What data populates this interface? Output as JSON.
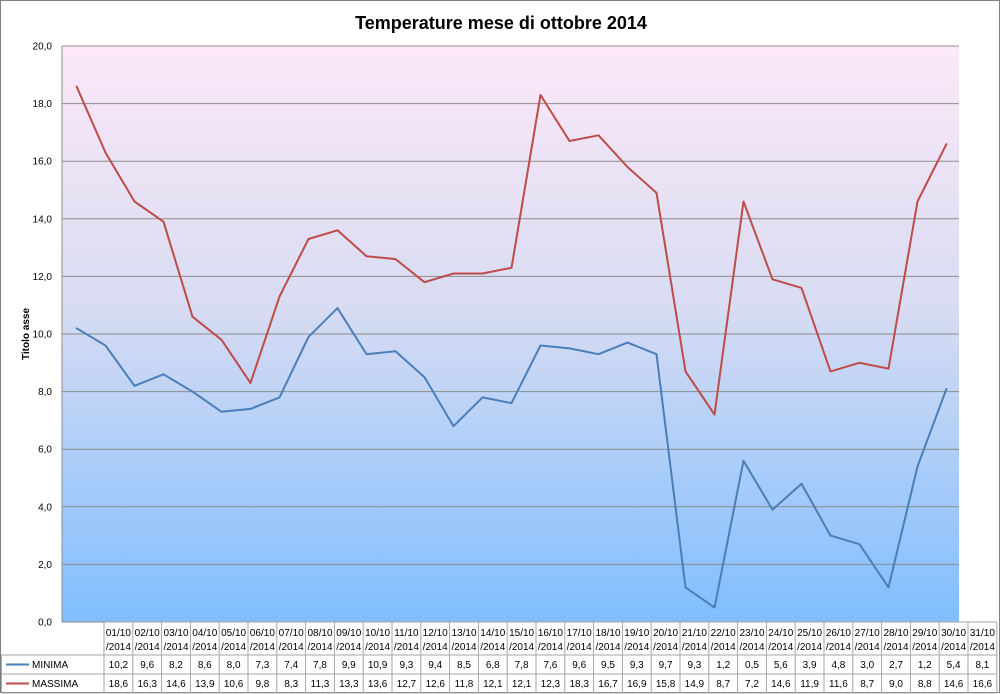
{
  "chart_data": {
    "type": "line",
    "title": "Temperature mese di ottobre 2014",
    "ylabel": "Titolo asse",
    "xlabel": "",
    "ylim": [
      0,
      20
    ],
    "yticks": [
      "0,0",
      "2,0",
      "4,0",
      "6,0",
      "8,0",
      "10,0",
      "12,0",
      "14,0",
      "16,0",
      "18,0",
      "20,0"
    ],
    "grid": true,
    "legend_placement": "data-table",
    "categories": [
      [
        "01/10",
        "/2014"
      ],
      [
        "02/10",
        "/2014"
      ],
      [
        "03/10",
        "/2014"
      ],
      [
        "04/10",
        "/2014"
      ],
      [
        "05/10",
        "/2014"
      ],
      [
        "06/10",
        "/2014"
      ],
      [
        "07/10",
        "/2014"
      ],
      [
        "08/10",
        "/2014"
      ],
      [
        "09/10",
        "/2014"
      ],
      [
        "10/10",
        "/2014"
      ],
      [
        "11/10",
        "/2014"
      ],
      [
        "12/10",
        "/2014"
      ],
      [
        "13/10",
        "/2014"
      ],
      [
        "14/10",
        "/2014"
      ],
      [
        "15/10",
        "/2014"
      ],
      [
        "16/10",
        "/2014"
      ],
      [
        "17/10",
        "/2014"
      ],
      [
        "18/10",
        "/2014"
      ],
      [
        "19/10",
        "/2014"
      ],
      [
        "20/10",
        "/2014"
      ],
      [
        "21/10",
        "/2014"
      ],
      [
        "22/10",
        "/2014"
      ],
      [
        "23/10",
        "/2014"
      ],
      [
        "24/10",
        "/2014"
      ],
      [
        "25/10",
        "/2014"
      ],
      [
        "26/10",
        "/2014"
      ],
      [
        "27/10",
        "/2014"
      ],
      [
        "28/10",
        "/2014"
      ],
      [
        "29/10",
        "/2014"
      ],
      [
        "30/10",
        "/2014"
      ],
      [
        "31/10",
        "/2014"
      ]
    ],
    "series": [
      {
        "name": "MINIMA",
        "color": "#4a7ebb",
        "values": [
          10.2,
          9.6,
          8.2,
          8.6,
          8.0,
          7.3,
          7.4,
          7.8,
          9.9,
          10.9,
          9.3,
          9.4,
          8.5,
          6.8,
          7.8,
          7.6,
          9.6,
          9.5,
          9.3,
          9.7,
          9.3,
          1.2,
          0.5,
          5.6,
          3.9,
          4.8,
          3.0,
          2.7,
          1.2,
          5.4,
          8.1
        ],
        "labels": [
          "10,2",
          "9,6",
          "8,2",
          "8,6",
          "8,0",
          "7,3",
          "7,4",
          "7,8",
          "9,9",
          "10,9",
          "9,3",
          "9,4",
          "8,5",
          "6,8",
          "7,8",
          "7,6",
          "9,6",
          "9,5",
          "9,3",
          "9,7",
          "9,3",
          "1,2",
          "0,5",
          "5,6",
          "3,9",
          "4,8",
          "3,0",
          "2,7",
          "1,2",
          "5,4",
          "8,1"
        ]
      },
      {
        "name": "MASSIMA",
        "color": "#be4b48",
        "values": [
          18.6,
          16.3,
          14.6,
          13.9,
          10.6,
          9.8,
          8.3,
          11.3,
          13.3,
          13.6,
          12.7,
          12.6,
          11.8,
          12.1,
          12.1,
          12.3,
          18.3,
          16.7,
          16.9,
          15.8,
          14.9,
          8.7,
          7.2,
          14.6,
          11.9,
          11.6,
          8.7,
          9.0,
          8.8,
          14.6,
          16.6
        ],
        "labels": [
          "18,6",
          "16,3",
          "14,6",
          "13,9",
          "10,6",
          "9,8",
          "8,3",
          "11,3",
          "13,3",
          "13,6",
          "12,7",
          "12,6",
          "11,8",
          "12,1",
          "12,1",
          "12,3",
          "18,3",
          "16,7",
          "16,9",
          "15,8",
          "14,9",
          "8,7",
          "7,2",
          "14,6",
          "11,9",
          "11,6",
          "8,7",
          "9,0",
          "8,8",
          "14,6",
          "16,6"
        ]
      }
    ],
    "colors": {
      "plot_gradient_top": "#fce8f8",
      "plot_gradient_bottom": "#7fbeff",
      "gridline": "#8c8c8c",
      "table_border": "#a6a6a6"
    }
  }
}
